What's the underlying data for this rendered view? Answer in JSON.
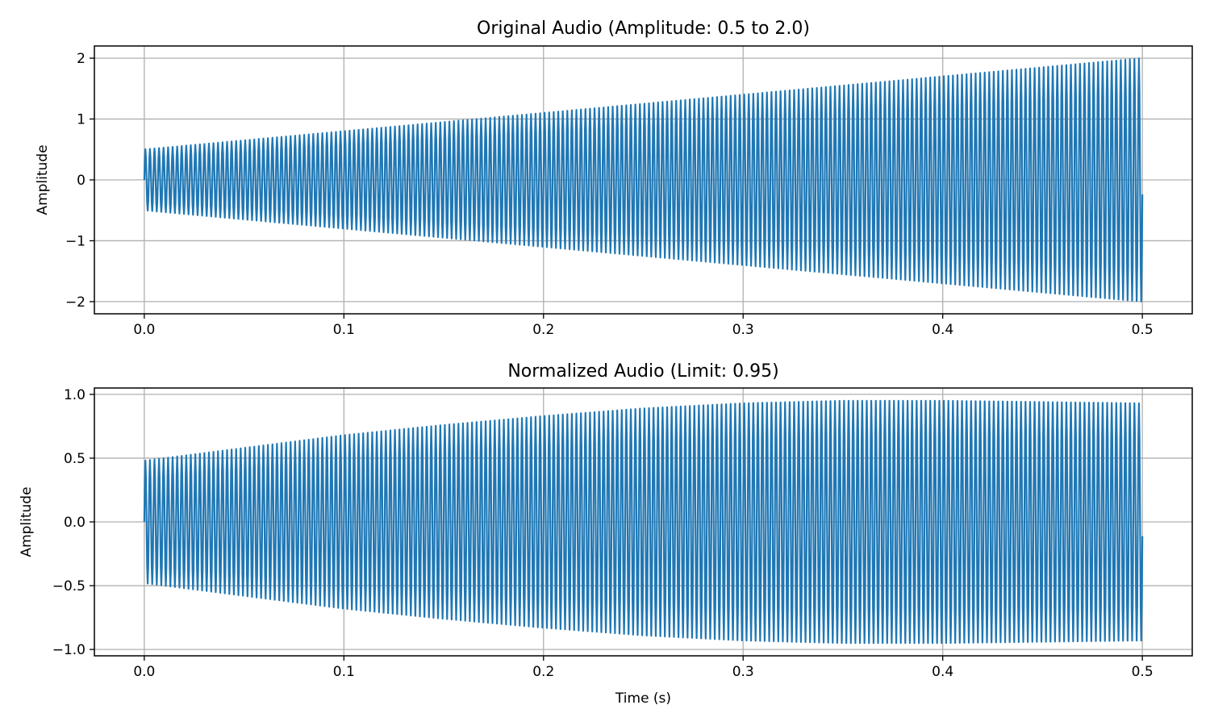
{
  "chart_data": [
    {
      "type": "line",
      "title": "Original Audio (Amplitude: 0.5 to 2.0)",
      "xlabel": "",
      "ylabel": "Amplitude",
      "xlim": [
        -0.025,
        0.525
      ],
      "ylim": [
        -2.2,
        2.2
      ],
      "xticks": [
        0.0,
        0.1,
        0.2,
        0.3,
        0.4,
        0.5
      ],
      "xtick_labels": [
        "0.0",
        "0.1",
        "0.2",
        "0.3",
        "0.4",
        "0.5"
      ],
      "yticks": [
        2,
        1,
        0,
        -1,
        -2
      ],
      "ytick_labels": [
        "2",
        "1",
        "0",
        "−1",
        "−2"
      ],
      "grid": true,
      "series": [
        {
          "color": "#1f77b4",
          "description_values": {
            "x_start": 0.0,
            "x_end": 0.5,
            "oscillation_cycles": 220,
            "envelope_x": [
              0.0,
              0.1,
              0.2,
              0.3,
              0.4,
              0.5
            ],
            "envelope_amplitude": [
              0.5,
              0.8,
              1.1,
              1.4,
              1.7,
              2.0
            ]
          }
        }
      ]
    },
    {
      "type": "line",
      "title": "Normalized Audio (Limit: 0.95)",
      "xlabel": "Time (s)",
      "ylabel": "Amplitude",
      "xlim": [
        -0.025,
        0.525
      ],
      "ylim": [
        -1.05,
        1.05
      ],
      "xticks": [
        0.0,
        0.1,
        0.2,
        0.3,
        0.4,
        0.5
      ],
      "xtick_labels": [
        "0.0",
        "0.1",
        "0.2",
        "0.3",
        "0.4",
        "0.5"
      ],
      "yticks": [
        1.0,
        0.5,
        0.0,
        -0.5,
        -1.0
      ],
      "ytick_labels": [
        "1.0",
        "0.5",
        "0.0",
        "−0.5",
        "−1.0"
      ],
      "grid": true,
      "series": [
        {
          "color": "#1f77b4",
          "description_values": {
            "x_start": 0.0,
            "x_end": 0.5,
            "oscillation_cycles": 220,
            "envelope_x": [
              0.0,
              0.05,
              0.1,
              0.15,
              0.2,
              0.25,
              0.3,
              0.35,
              0.4,
              0.45,
              0.5
            ],
            "envelope_amplitude": [
              0.48,
              0.58,
              0.68,
              0.76,
              0.83,
              0.89,
              0.93,
              0.95,
              0.95,
              0.94,
              0.93
            ]
          }
        }
      ]
    }
  ]
}
